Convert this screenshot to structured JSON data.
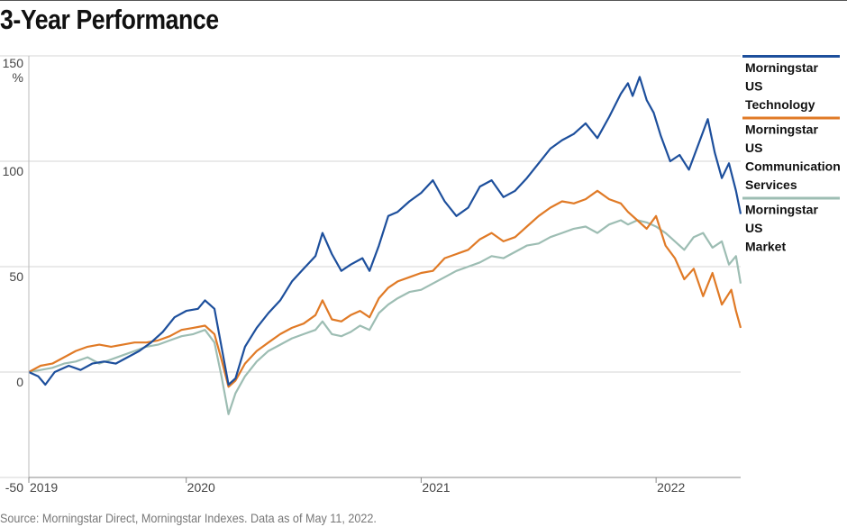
{
  "title": "3-Year Performance",
  "source": "Source: Morningstar Direct, Morningstar Indexes. Data as of May 11, 2022.",
  "chart_data": {
    "type": "line",
    "title": "3-Year Performance",
    "ylabel": "%",
    "ylim": [
      -50,
      150
    ],
    "yticks": [
      -50,
      0,
      50,
      100,
      150
    ],
    "x_start": 2019.33,
    "x_end": 2022.36,
    "xticks": [
      {
        "label": "2019",
        "value": 2019.33
      },
      {
        "label": "2020",
        "value": 2020.0
      },
      {
        "label": "2021",
        "value": 2021.0
      },
      {
        "label": "2022",
        "value": 2022.0
      }
    ],
    "grid": true,
    "legend_placement": "right",
    "series": [
      {
        "name": "Morningstar US Technology",
        "legend_lines": [
          "Morningstar",
          "US",
          "Technology"
        ],
        "color": "#1d4f9c",
        "points": [
          [
            2019.33,
            0
          ],
          [
            2019.37,
            -2
          ],
          [
            2019.4,
            -6
          ],
          [
            2019.44,
            0
          ],
          [
            2019.5,
            3
          ],
          [
            2019.55,
            1
          ],
          [
            2019.6,
            4
          ],
          [
            2019.65,
            5
          ],
          [
            2019.7,
            4
          ],
          [
            2019.75,
            7
          ],
          [
            2019.8,
            10
          ],
          [
            2019.85,
            14
          ],
          [
            2019.9,
            19
          ],
          [
            2019.95,
            26
          ],
          [
            2020.0,
            29
          ],
          [
            2020.05,
            30
          ],
          [
            2020.08,
            34
          ],
          [
            2020.12,
            30
          ],
          [
            2020.15,
            12
          ],
          [
            2020.18,
            -6
          ],
          [
            2020.21,
            -3
          ],
          [
            2020.25,
            12
          ],
          [
            2020.3,
            21
          ],
          [
            2020.35,
            28
          ],
          [
            2020.4,
            34
          ],
          [
            2020.45,
            43
          ],
          [
            2020.5,
            49
          ],
          [
            2020.55,
            55
          ],
          [
            2020.58,
            66
          ],
          [
            2020.62,
            56
          ],
          [
            2020.66,
            48
          ],
          [
            2020.7,
            51
          ],
          [
            2020.75,
            54
          ],
          [
            2020.78,
            48
          ],
          [
            2020.82,
            60
          ],
          [
            2020.86,
            74
          ],
          [
            2020.9,
            76
          ],
          [
            2020.95,
            81
          ],
          [
            2021.0,
            85
          ],
          [
            2021.05,
            91
          ],
          [
            2021.1,
            81
          ],
          [
            2021.15,
            74
          ],
          [
            2021.2,
            78
          ],
          [
            2021.25,
            88
          ],
          [
            2021.3,
            91
          ],
          [
            2021.35,
            83
          ],
          [
            2021.4,
            86
          ],
          [
            2021.45,
            92
          ],
          [
            2021.5,
            99
          ],
          [
            2021.55,
            106
          ],
          [
            2021.6,
            110
          ],
          [
            2021.65,
            113
          ],
          [
            2021.7,
            118
          ],
          [
            2021.75,
            111
          ],
          [
            2021.8,
            121
          ],
          [
            2021.85,
            132
          ],
          [
            2021.88,
            137
          ],
          [
            2021.9,
            131
          ],
          [
            2021.93,
            140
          ],
          [
            2021.96,
            129
          ],
          [
            2021.99,
            123
          ],
          [
            2022.02,
            112
          ],
          [
            2022.06,
            100
          ],
          [
            2022.1,
            103
          ],
          [
            2022.14,
            96
          ],
          [
            2022.18,
            108
          ],
          [
            2022.22,
            120
          ],
          [
            2022.25,
            104
          ],
          [
            2022.28,
            92
          ],
          [
            2022.31,
            99
          ],
          [
            2022.34,
            86
          ],
          [
            2022.36,
            75
          ]
        ]
      },
      {
        "name": "Morningstar US Communication Services",
        "legend_lines": [
          "Morningstar",
          "US",
          "Communication",
          "Services"
        ],
        "color": "#e07a26",
        "points": [
          [
            2019.33,
            0
          ],
          [
            2019.38,
            3
          ],
          [
            2019.43,
            4
          ],
          [
            2019.48,
            7
          ],
          [
            2019.53,
            10
          ],
          [
            2019.58,
            12
          ],
          [
            2019.63,
            13
          ],
          [
            2019.68,
            12
          ],
          [
            2019.73,
            13
          ],
          [
            2019.78,
            14
          ],
          [
            2019.83,
            14
          ],
          [
            2019.88,
            15
          ],
          [
            2019.93,
            17
          ],
          [
            2019.98,
            20
          ],
          [
            2020.03,
            21
          ],
          [
            2020.08,
            22
          ],
          [
            2020.12,
            18
          ],
          [
            2020.15,
            6
          ],
          [
            2020.18,
            -7
          ],
          [
            2020.21,
            -4
          ],
          [
            2020.25,
            4
          ],
          [
            2020.3,
            10
          ],
          [
            2020.35,
            14
          ],
          [
            2020.4,
            18
          ],
          [
            2020.45,
            21
          ],
          [
            2020.5,
            23
          ],
          [
            2020.55,
            27
          ],
          [
            2020.58,
            34
          ],
          [
            2020.62,
            25
          ],
          [
            2020.66,
            24
          ],
          [
            2020.7,
            27
          ],
          [
            2020.74,
            29
          ],
          [
            2020.78,
            26
          ],
          [
            2020.82,
            35
          ],
          [
            2020.86,
            40
          ],
          [
            2020.9,
            43
          ],
          [
            2020.95,
            45
          ],
          [
            2021.0,
            47
          ],
          [
            2021.05,
            48
          ],
          [
            2021.1,
            54
          ],
          [
            2021.15,
            56
          ],
          [
            2021.2,
            58
          ],
          [
            2021.25,
            63
          ],
          [
            2021.3,
            66
          ],
          [
            2021.35,
            62
          ],
          [
            2021.4,
            64
          ],
          [
            2021.45,
            69
          ],
          [
            2021.5,
            74
          ],
          [
            2021.55,
            78
          ],
          [
            2021.6,
            81
          ],
          [
            2021.65,
            80
          ],
          [
            2021.7,
            82
          ],
          [
            2021.75,
            86
          ],
          [
            2021.8,
            82
          ],
          [
            2021.85,
            80
          ],
          [
            2021.88,
            76
          ],
          [
            2021.92,
            72
          ],
          [
            2021.96,
            68
          ],
          [
            2022.0,
            74
          ],
          [
            2022.04,
            60
          ],
          [
            2022.08,
            54
          ],
          [
            2022.12,
            44
          ],
          [
            2022.16,
            49
          ],
          [
            2022.2,
            36
          ],
          [
            2022.24,
            47
          ],
          [
            2022.28,
            32
          ],
          [
            2022.32,
            39
          ],
          [
            2022.34,
            29
          ],
          [
            2022.36,
            21
          ]
        ]
      },
      {
        "name": "Morningstar US Market",
        "legend_lines": [
          "Morningstar",
          "US",
          "Market"
        ],
        "color": "#9dbdb3",
        "points": [
          [
            2019.33,
            0
          ],
          [
            2019.38,
            1
          ],
          [
            2019.43,
            2
          ],
          [
            2019.48,
            4
          ],
          [
            2019.53,
            5
          ],
          [
            2019.58,
            7
          ],
          [
            2019.63,
            4
          ],
          [
            2019.68,
            6
          ],
          [
            2019.73,
            8
          ],
          [
            2019.78,
            10
          ],
          [
            2019.83,
            12
          ],
          [
            2019.88,
            13
          ],
          [
            2019.93,
            15
          ],
          [
            2019.98,
            17
          ],
          [
            2020.03,
            18
          ],
          [
            2020.08,
            20
          ],
          [
            2020.12,
            14
          ],
          [
            2020.15,
            -2
          ],
          [
            2020.18,
            -20
          ],
          [
            2020.21,
            -10
          ],
          [
            2020.25,
            -2
          ],
          [
            2020.3,
            5
          ],
          [
            2020.35,
            10
          ],
          [
            2020.4,
            13
          ],
          [
            2020.45,
            16
          ],
          [
            2020.5,
            18
          ],
          [
            2020.55,
            20
          ],
          [
            2020.58,
            24
          ],
          [
            2020.62,
            18
          ],
          [
            2020.66,
            17
          ],
          [
            2020.7,
            19
          ],
          [
            2020.74,
            22
          ],
          [
            2020.78,
            20
          ],
          [
            2020.82,
            28
          ],
          [
            2020.86,
            32
          ],
          [
            2020.9,
            35
          ],
          [
            2020.95,
            38
          ],
          [
            2021.0,
            39
          ],
          [
            2021.05,
            42
          ],
          [
            2021.1,
            45
          ],
          [
            2021.15,
            48
          ],
          [
            2021.2,
            50
          ],
          [
            2021.25,
            52
          ],
          [
            2021.3,
            55
          ],
          [
            2021.35,
            54
          ],
          [
            2021.4,
            57
          ],
          [
            2021.45,
            60
          ],
          [
            2021.5,
            61
          ],
          [
            2021.55,
            64
          ],
          [
            2021.6,
            66
          ],
          [
            2021.65,
            68
          ],
          [
            2021.7,
            69
          ],
          [
            2021.75,
            66
          ],
          [
            2021.8,
            70
          ],
          [
            2021.85,
            72
          ],
          [
            2021.88,
            70
          ],
          [
            2021.92,
            72
          ],
          [
            2021.96,
            71
          ],
          [
            2022.0,
            69
          ],
          [
            2022.04,
            66
          ],
          [
            2022.08,
            62
          ],
          [
            2022.12,
            58
          ],
          [
            2022.16,
            64
          ],
          [
            2022.2,
            66
          ],
          [
            2022.24,
            59
          ],
          [
            2022.28,
            62
          ],
          [
            2022.31,
            51
          ],
          [
            2022.34,
            55
          ],
          [
            2022.36,
            42
          ]
        ]
      }
    ]
  }
}
